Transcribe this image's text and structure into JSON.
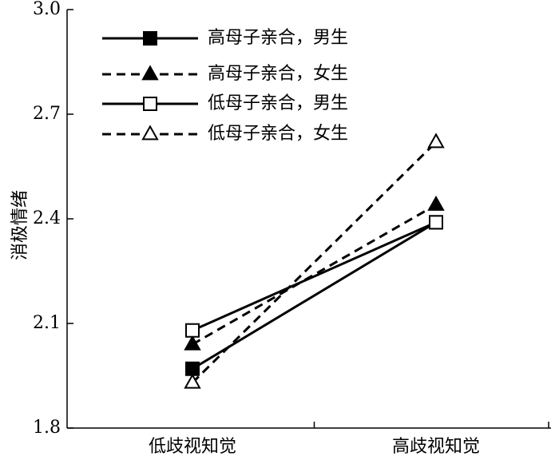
{
  "chart_data": {
    "type": "line",
    "ylabel": "消极情绪",
    "xlabel": "",
    "ylim": [
      1.8,
      3.0
    ],
    "yticks": [
      "1.8",
      "2.1",
      "2.4",
      "2.7",
      "3.0"
    ],
    "categories": [
      "低歧视知觉",
      "高歧视知觉"
    ],
    "legend_position": "top-left",
    "grid": false,
    "series": [
      {
        "name": "高母子亲合，男生",
        "values": [
          1.97,
          2.39
        ],
        "marker": "square-filled",
        "dash": "solid"
      },
      {
        "name": "高母子亲合，女生",
        "values": [
          2.04,
          2.44
        ],
        "marker": "triangle-filled",
        "dash": "dashed"
      },
      {
        "name": "低母子亲合，男生",
        "values": [
          2.08,
          2.39
        ],
        "marker": "square-open",
        "dash": "solid"
      },
      {
        "name": "低母子亲合，女生",
        "values": [
          1.93,
          2.62
        ],
        "marker": "triangle-open",
        "dash": "dashed"
      }
    ]
  }
}
